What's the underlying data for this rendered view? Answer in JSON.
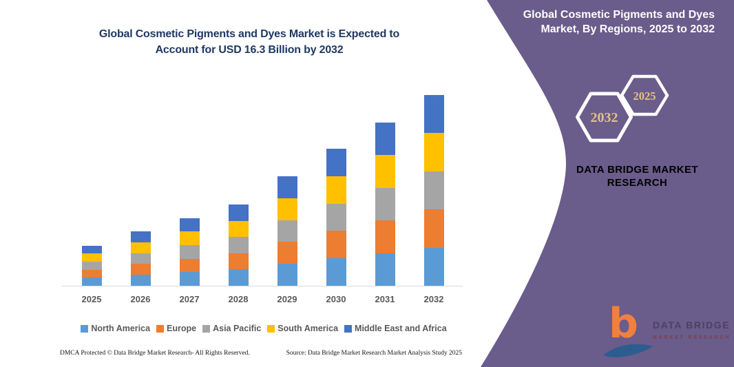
{
  "main_title": {
    "line1": "Global Cosmetic Pigments and Dyes Market is Expected to",
    "line2": "Account for USD 16.3 Billion by 2032"
  },
  "chart_data": {
    "type": "bar",
    "stacked": true,
    "title": "Global Cosmetic Pigments and Dyes Market, By Regions, 2025 to 2032",
    "unit": "USD Billion",
    "categories": [
      "2025",
      "2026",
      "2027",
      "2028",
      "2029",
      "2030",
      "2031",
      "2032"
    ],
    "series": [
      {
        "name": "North America",
        "color": "#5b9bd5",
        "values": [
          0.69,
          0.93,
          1.16,
          1.39,
          1.87,
          2.34,
          2.79,
          3.26
        ]
      },
      {
        "name": "Europe",
        "color": "#ed7d31",
        "values": [
          0.69,
          0.93,
          1.16,
          1.39,
          1.87,
          2.34,
          2.79,
          3.26
        ]
      },
      {
        "name": "Asia Pacific",
        "color": "#a5a5a5",
        "values": [
          0.69,
          0.93,
          1.16,
          1.39,
          1.87,
          2.34,
          2.79,
          3.26
        ]
      },
      {
        "name": "South America",
        "color": "#ffc000",
        "values": [
          0.69,
          0.93,
          1.16,
          1.39,
          1.87,
          2.34,
          2.79,
          3.26
        ]
      },
      {
        "name": "Middle East and Africa",
        "color": "#4472c4",
        "values": [
          0.69,
          0.93,
          1.16,
          1.39,
          1.87,
          2.34,
          2.79,
          3.26
        ]
      }
    ],
    "totals": [
      3.45,
      4.65,
      5.8,
      6.95,
      9.35,
      11.7,
      13.95,
      16.3
    ],
    "ylim": [
      0,
      17
    ],
    "grid": false,
    "legend_position": "bottom",
    "xlabel": "",
    "ylabel": ""
  },
  "footer": {
    "left": "DMCA Protected © Data Bridge Market Research- All Rights Reserved.",
    "right": "Source: Data Bridge Market Research Market Analysis Study 2025"
  },
  "side_panel": {
    "background": "#6a5c8b",
    "title_line1": "Global Cosmetic Pigments and Dyes",
    "title_line2": "Market, By Regions, 2025 to 2032",
    "hexagons": [
      {
        "label": "2032"
      },
      {
        "label": "2025"
      }
    ],
    "year_text_color": "#e3c284",
    "brand_line1": "DATA BRIDGE MARKET",
    "brand_line2": "RESEARCH",
    "brand_color": "#cf9c4b",
    "logo": {
      "monogram": "b",
      "name": "DATA BRIDGE",
      "tagline": "MARKET RESEARCH"
    }
  }
}
